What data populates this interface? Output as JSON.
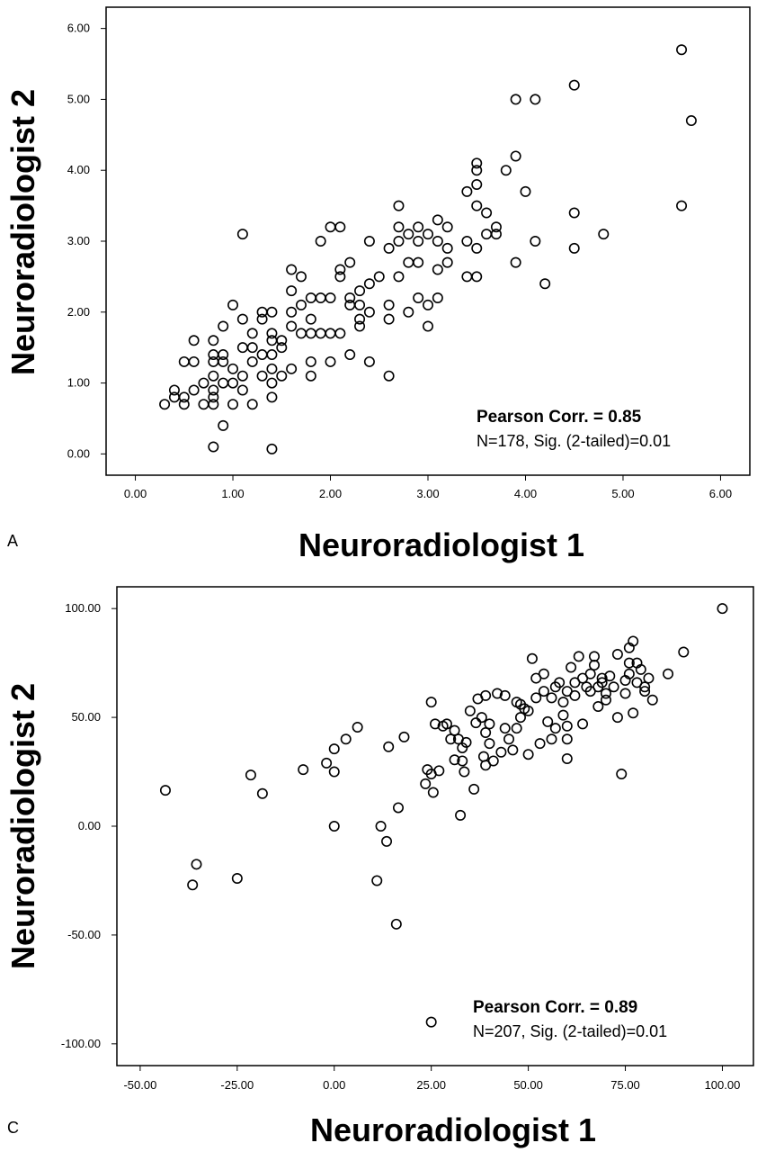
{
  "chart_data": [
    {
      "type": "scatter",
      "panel_label": "A",
      "xlabel": "Neuroradiologist 1",
      "ylabel": "Neuroradiologist 2",
      "xlim": [
        -0.3,
        6.3
      ],
      "ylim": [
        -0.3,
        6.3
      ],
      "x_ticks": [
        "0.00",
        "1.00",
        "2.00",
        "3.00",
        "4.00",
        "5.00",
        "6.00"
      ],
      "y_ticks": [
        "0.00",
        "1.00",
        "2.00",
        "3.00",
        "4.00",
        "5.00",
        "6.00"
      ],
      "annotation_bold": "Pearson Corr. = 0.85",
      "annotation": "N=178, Sig. (2-tailed)=0.01",
      "points": [
        [
          0.3,
          0.7
        ],
        [
          0.4,
          0.8
        ],
        [
          0.4,
          0.9
        ],
        [
          0.5,
          0.8
        ],
        [
          0.5,
          0.7
        ],
        [
          0.6,
          0.9
        ],
        [
          0.5,
          1.3
        ],
        [
          0.6,
          1.3
        ],
        [
          0.6,
          1.6
        ],
        [
          0.7,
          0.7
        ],
        [
          0.7,
          1.0
        ],
        [
          0.8,
          0.8
        ],
        [
          0.8,
          0.9
        ],
        [
          0.8,
          1.1
        ],
        [
          0.8,
          1.3
        ],
        [
          0.8,
          1.4
        ],
        [
          0.8,
          1.6
        ],
        [
          0.8,
          0.1
        ],
        [
          0.8,
          0.7
        ],
        [
          0.9,
          1.0
        ],
        [
          0.9,
          1.3
        ],
        [
          0.9,
          1.4
        ],
        [
          0.9,
          1.8
        ],
        [
          0.9,
          0.4
        ],
        [
          1.0,
          1.0
        ],
        [
          1.0,
          1.2
        ],
        [
          1.0,
          2.1
        ],
        [
          1.0,
          0.7
        ],
        [
          1.1,
          1.5
        ],
        [
          1.1,
          1.9
        ],
        [
          1.1,
          1.1
        ],
        [
          1.1,
          0.9
        ],
        [
          1.1,
          3.1
        ],
        [
          1.2,
          1.3
        ],
        [
          1.2,
          1.5
        ],
        [
          1.2,
          1.7
        ],
        [
          1.2,
          0.7
        ],
        [
          1.3,
          1.4
        ],
        [
          1.3,
          1.1
        ],
        [
          1.3,
          1.9
        ],
        [
          1.3,
          2.0
        ],
        [
          1.4,
          1.0
        ],
        [
          1.4,
          1.2
        ],
        [
          1.4,
          1.4
        ],
        [
          1.4,
          1.6
        ],
        [
          1.4,
          1.7
        ],
        [
          1.4,
          2.0
        ],
        [
          1.4,
          0.8
        ],
        [
          1.4,
          0.07
        ],
        [
          1.5,
          1.5
        ],
        [
          1.5,
          1.1
        ],
        [
          1.5,
          1.6
        ],
        [
          1.6,
          1.2
        ],
        [
          1.6,
          1.8
        ],
        [
          1.6,
          2.3
        ],
        [
          1.6,
          2.6
        ],
        [
          1.6,
          2.0
        ],
        [
          1.7,
          1.7
        ],
        [
          1.7,
          2.1
        ],
        [
          1.7,
          2.5
        ],
        [
          1.8,
          1.1
        ],
        [
          1.8,
          1.3
        ],
        [
          1.8,
          1.7
        ],
        [
          1.8,
          1.9
        ],
        [
          1.8,
          2.2
        ],
        [
          1.9,
          1.7
        ],
        [
          1.9,
          2.2
        ],
        [
          1.9,
          3.0
        ],
        [
          2.0,
          1.7
        ],
        [
          2.0,
          1.3
        ],
        [
          2.0,
          2.2
        ],
        [
          2.0,
          3.2
        ],
        [
          2.1,
          1.7
        ],
        [
          2.1,
          2.5
        ],
        [
          2.1,
          2.6
        ],
        [
          2.1,
          3.2
        ],
        [
          2.2,
          2.1
        ],
        [
          2.2,
          2.2
        ],
        [
          2.2,
          1.4
        ],
        [
          2.2,
          2.7
        ],
        [
          2.3,
          1.8
        ],
        [
          2.3,
          1.9
        ],
        [
          2.3,
          2.1
        ],
        [
          2.3,
          2.3
        ],
        [
          2.4,
          2.0
        ],
        [
          2.4,
          2.4
        ],
        [
          2.4,
          3.0
        ],
        [
          2.4,
          1.3
        ],
        [
          2.5,
          2.5
        ],
        [
          2.6,
          2.1
        ],
        [
          2.6,
          1.9
        ],
        [
          2.6,
          2.9
        ],
        [
          2.6,
          1.1
        ],
        [
          2.7,
          2.5
        ],
        [
          2.7,
          3.0
        ],
        [
          2.7,
          3.2
        ],
        [
          2.7,
          3.5
        ],
        [
          2.8,
          2.0
        ],
        [
          2.8,
          2.7
        ],
        [
          2.8,
          3.1
        ],
        [
          2.9,
          2.2
        ],
        [
          2.9,
          2.7
        ],
        [
          2.9,
          3.0
        ],
        [
          2.9,
          3.2
        ],
        [
          3.0,
          1.8
        ],
        [
          3.0,
          2.1
        ],
        [
          3.0,
          3.1
        ],
        [
          3.1,
          2.2
        ],
        [
          3.1,
          2.6
        ],
        [
          3.1,
          3.0
        ],
        [
          3.1,
          3.3
        ],
        [
          3.2,
          2.7
        ],
        [
          3.2,
          2.9
        ],
        [
          3.2,
          3.2
        ],
        [
          3.4,
          2.5
        ],
        [
          3.4,
          3.0
        ],
        [
          3.4,
          3.7
        ],
        [
          3.5,
          2.5
        ],
        [
          3.5,
          2.9
        ],
        [
          3.5,
          3.5
        ],
        [
          3.5,
          3.8
        ],
        [
          3.5,
          4.0
        ],
        [
          3.5,
          4.1
        ],
        [
          3.6,
          3.1
        ],
        [
          3.6,
          3.4
        ],
        [
          3.7,
          3.1
        ],
        [
          3.7,
          3.2
        ],
        [
          3.8,
          4.0
        ],
        [
          3.9,
          2.7
        ],
        [
          3.9,
          4.2
        ],
        [
          3.9,
          5.0
        ],
        [
          4.0,
          3.7
        ],
        [
          4.1,
          3.0
        ],
        [
          4.1,
          5.0
        ],
        [
          4.2,
          2.4
        ],
        [
          4.5,
          2.9
        ],
        [
          4.5,
          3.4
        ],
        [
          4.5,
          5.2
        ],
        [
          4.8,
          3.1
        ],
        [
          5.6,
          3.5
        ],
        [
          5.6,
          5.7
        ],
        [
          5.7,
          4.7
        ]
      ]
    },
    {
      "type": "scatter",
      "panel_label": "C",
      "xlabel": "Neuroradiologist 1",
      "ylabel": "Neuroradiologist 2",
      "xlim": [
        -56,
        108
      ],
      "ylim": [
        -110,
        110
      ],
      "x_ticks": [
        "-50.00",
        "-25.00",
        "0.00",
        "25.00",
        "50.00",
        "75.00",
        "100.00"
      ],
      "y_ticks": [
        "-100.00",
        "-50.00",
        "0.00",
        "50.00",
        "100.00"
      ],
      "annotation_bold": "Pearson Corr. = 0.89",
      "annotation": "N=207, Sig. (2-tailed)=0.01",
      "points": [
        [
          -43.5,
          16.5
        ],
        [
          -36.5,
          -27
        ],
        [
          -35.5,
          -17.5
        ],
        [
          -25,
          -24
        ],
        [
          -21.5,
          23.5
        ],
        [
          -18.5,
          15
        ],
        [
          -8,
          26
        ],
        [
          -2,
          29
        ],
        [
          0,
          25
        ],
        [
          0,
          35.5
        ],
        [
          0,
          0
        ],
        [
          3,
          40
        ],
        [
          6,
          45.5
        ],
        [
          11,
          -25
        ],
        [
          12,
          0
        ],
        [
          13.5,
          -7
        ],
        [
          14,
          36.5
        ],
        [
          16,
          -45
        ],
        [
          16.5,
          8.5
        ],
        [
          18,
          41
        ],
        [
          23.5,
          19.5
        ],
        [
          24,
          26
        ],
        [
          25,
          57
        ],
        [
          25,
          24
        ],
        [
          25.5,
          15.5
        ],
        [
          26,
          47
        ],
        [
          27,
          25.5
        ],
        [
          28,
          46
        ],
        [
          29,
          47
        ],
        [
          30,
          40
        ],
        [
          31,
          44
        ],
        [
          31,
          30.5
        ],
        [
          32,
          40
        ],
        [
          32.5,
          5
        ],
        [
          33,
          30
        ],
        [
          33,
          36
        ],
        [
          33.5,
          25
        ],
        [
          34,
          38.5
        ],
        [
          35,
          53
        ],
        [
          36,
          17
        ],
        [
          36.5,
          47.5
        ],
        [
          37,
          58.5
        ],
        [
          38,
          50
        ],
        [
          38.5,
          32
        ],
        [
          39,
          43
        ],
        [
          39,
          28
        ],
        [
          39,
          60
        ],
        [
          40,
          38
        ],
        [
          40,
          47
        ],
        [
          41,
          30
        ],
        [
          42,
          61
        ],
        [
          43,
          34
        ],
        [
          44,
          60
        ],
        [
          44,
          45
        ],
        [
          45,
          40
        ],
        [
          46,
          35
        ],
        [
          47,
          57
        ],
        [
          47,
          45
        ],
        [
          48,
          56
        ],
        [
          48,
          50
        ],
        [
          49,
          54
        ],
        [
          50,
          33
        ],
        [
          50,
          53
        ],
        [
          51,
          77
        ],
        [
          52,
          68
        ],
        [
          52,
          59
        ],
        [
          53,
          38
        ],
        [
          54,
          70
        ],
        [
          54,
          62
        ],
        [
          55,
          48
        ],
        [
          56,
          40
        ],
        [
          56,
          59
        ],
        [
          57,
          64
        ],
        [
          57,
          45
        ],
        [
          58,
          66
        ],
        [
          59,
          57
        ],
        [
          59,
          51
        ],
        [
          60,
          62
        ],
        [
          60,
          40
        ],
        [
          60,
          31
        ],
        [
          60,
          46
        ],
        [
          61,
          73
        ],
        [
          62,
          60
        ],
        [
          62,
          66
        ],
        [
          63,
          78
        ],
        [
          64,
          68
        ],
        [
          64,
          47
        ],
        [
          65,
          64
        ],
        [
          66,
          70
        ],
        [
          66,
          62
        ],
        [
          67,
          74
        ],
        [
          67,
          78
        ],
        [
          68,
          64
        ],
        [
          68,
          55
        ],
        [
          69,
          66
        ],
        [
          69,
          68
        ],
        [
          70,
          58
        ],
        [
          70,
          61
        ],
        [
          71,
          69
        ],
        [
          72,
          64
        ],
        [
          73,
          79
        ],
        [
          73,
          50
        ],
        [
          74,
          24
        ],
        [
          75,
          61
        ],
        [
          75,
          67
        ],
        [
          76,
          82
        ],
        [
          76,
          70
        ],
        [
          76,
          75
        ],
        [
          77,
          52
        ],
        [
          77,
          85
        ],
        [
          78,
          75
        ],
        [
          78,
          66
        ],
        [
          79,
          72
        ],
        [
          80,
          62
        ],
        [
          80,
          64
        ],
        [
          81,
          68
        ],
        [
          82,
          58
        ],
        [
          86,
          70
        ],
        [
          90,
          80
        ],
        [
          100,
          100
        ],
        [
          25,
          -90
        ]
      ]
    }
  ]
}
